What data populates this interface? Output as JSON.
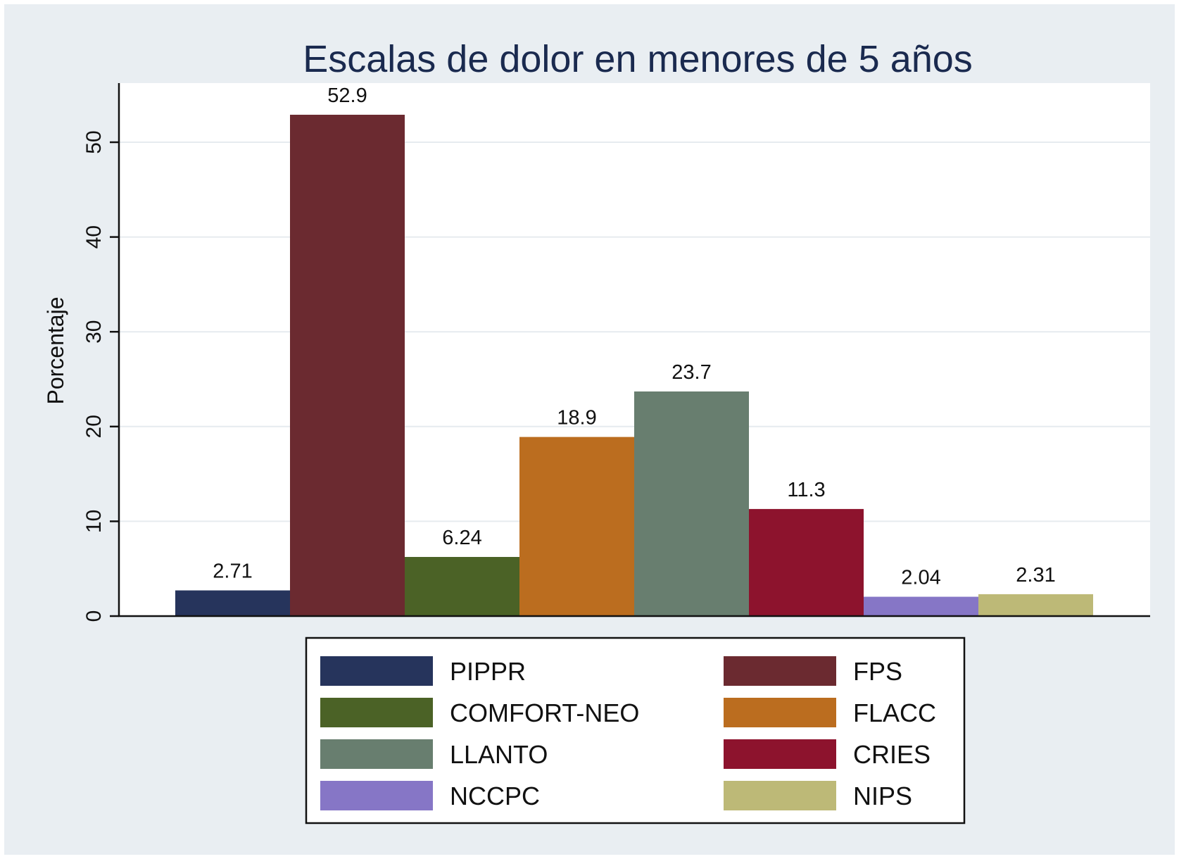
{
  "chart_data": {
    "type": "bar",
    "title": "Escalas de dolor en menores de 5 años",
    "xlabel": "",
    "ylabel": "Porcentaje",
    "ylim": [
      0,
      56
    ],
    "yticks": [
      0,
      10,
      20,
      30,
      40,
      50
    ],
    "grid": true,
    "legend_position": "bottom",
    "series": [
      {
        "name": "PIPPR",
        "value": 2.71,
        "label": "2.71",
        "color": "#26345c"
      },
      {
        "name": "FPS",
        "value": 52.9,
        "label": "52.9",
        "color": "#6b2a30"
      },
      {
        "name": "COMFORT-NEO",
        "value": 6.24,
        "label": "6.24",
        "color": "#4b6226"
      },
      {
        "name": "FLACC",
        "value": 18.9,
        "label": "18.9",
        "color": "#bb6d1f"
      },
      {
        "name": "LLANTO",
        "value": 23.7,
        "label": "23.7",
        "color": "#687e6f"
      },
      {
        "name": "CRIES",
        "value": 11.3,
        "label": "11.3",
        "color": "#8d132d"
      },
      {
        "name": "NCCPC",
        "value": 2.04,
        "label": "2.04",
        "color": "#8676c6"
      },
      {
        "name": "NIPS",
        "value": 2.31,
        "label": "2.31",
        "color": "#bdb977"
      }
    ]
  }
}
